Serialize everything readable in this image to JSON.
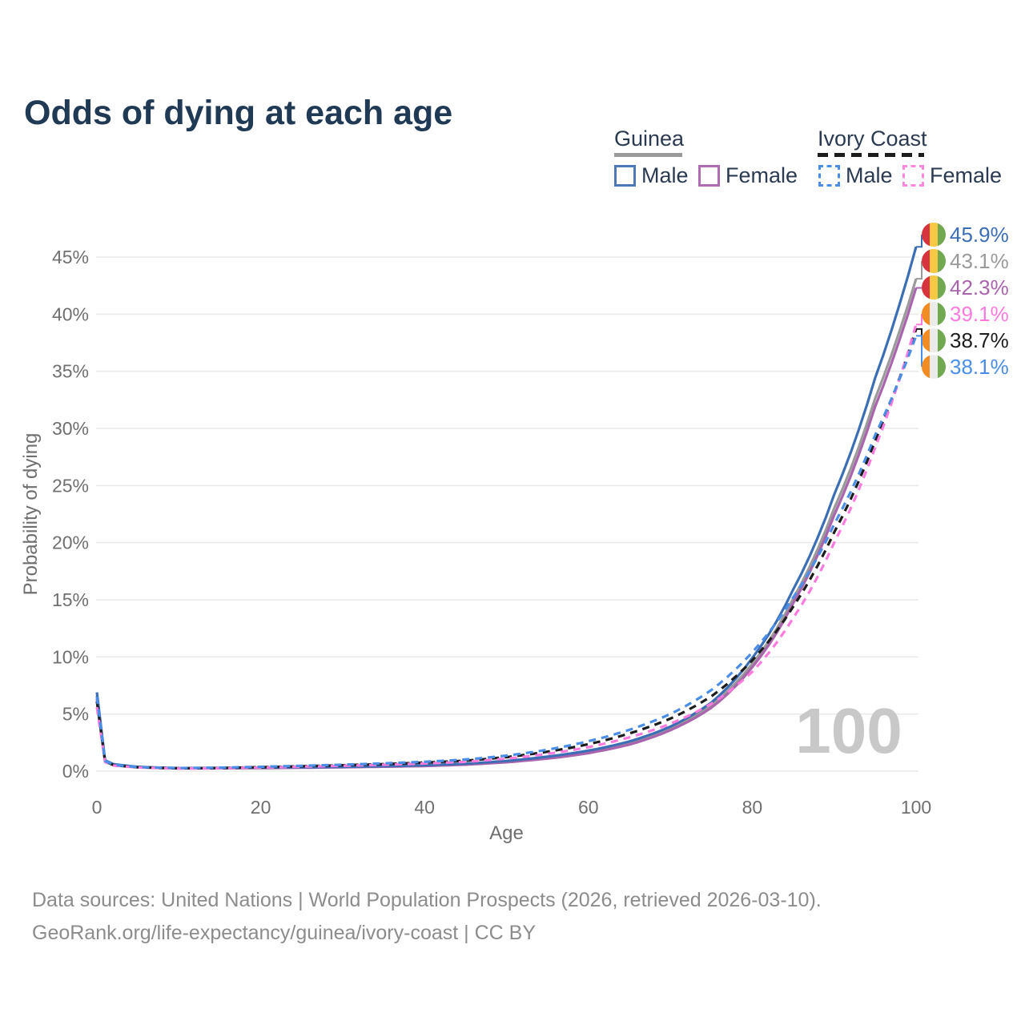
{
  "title": "Odds of dying at each age",
  "watermark": "100",
  "legend": {
    "groups": [
      {
        "name": "Guinea",
        "line_style": "solid",
        "line_color": "#9a9a9a",
        "items": [
          {
            "label": "Male",
            "color": "#4a7ab5"
          },
          {
            "label": "Female",
            "color": "#b06cb3"
          }
        ]
      },
      {
        "name": "Ivory Coast",
        "line_style": "dashed",
        "line_color": "#1c1c1c",
        "items": [
          {
            "label": "Male",
            "color": "#4b8ee8"
          },
          {
            "label": "Female",
            "color": "#ff87df"
          }
        ]
      }
    ]
  },
  "flags": {
    "guinea": [
      "#d6333f",
      "#f7c844",
      "#71a850"
    ],
    "ivory-coast": [
      "#f28b22",
      "#ebebeb",
      "#71a850"
    ]
  },
  "footer": {
    "line1": "Data sources: United Nations | World Population Prospects (2026, retrieved 2026-03-10).",
    "line2": "GeoRank.org/life-expectancy/guinea/ivory-coast | CC BY"
  },
  "chart_data": {
    "type": "line",
    "title": "Odds of dying at each age",
    "xlabel": "Age",
    "ylabel": "Probability of dying",
    "xlim": [
      0,
      100
    ],
    "ylim": [
      0,
      45
    ],
    "grid": "horizontal",
    "legend_position": "top-right",
    "x_ticks": [
      0,
      20,
      40,
      60,
      80,
      100
    ],
    "y_ticks": [
      "0%",
      "5%",
      "10%",
      "15%",
      "20%",
      "25%",
      "30%",
      "35%",
      "40%",
      "45%"
    ],
    "x": [
      0,
      1,
      2,
      5,
      10,
      15,
      20,
      25,
      30,
      35,
      40,
      45,
      50,
      55,
      60,
      65,
      70,
      75,
      80,
      85,
      90,
      95,
      100
    ],
    "series": [
      {
        "key": "guinea-total",
        "name": "Guinea",
        "color": "#9a9a9a",
        "dashed": false,
        "values": [
          6.6,
          0.9,
          0.58,
          0.36,
          0.25,
          0.26,
          0.29,
          0.32,
          0.36,
          0.41,
          0.48,
          0.61,
          0.83,
          1.17,
          1.68,
          2.45,
          3.72,
          5.75,
          9.4,
          15.1,
          23.0,
          32.6,
          43.1
        ]
      },
      {
        "key": "guinea-female",
        "name": "Guinea Female",
        "color": "#a964ad",
        "dashed": false,
        "values": [
          6.3,
          0.85,
          0.55,
          0.34,
          0.24,
          0.25,
          0.27,
          0.3,
          0.34,
          0.39,
          0.45,
          0.57,
          0.78,
          1.1,
          1.58,
          2.33,
          3.58,
          5.55,
          9.1,
          14.7,
          22.4,
          31.9,
          42.3
        ]
      },
      {
        "key": "guinea-male",
        "name": "Guinea Male",
        "color": "#3b6eb5",
        "dashed": false,
        "values": [
          6.9,
          0.95,
          0.62,
          0.38,
          0.26,
          0.27,
          0.31,
          0.34,
          0.38,
          0.44,
          0.52,
          0.66,
          0.9,
          1.27,
          1.8,
          2.6,
          3.9,
          6.0,
          9.9,
          15.9,
          24.2,
          34.4,
          45.9
        ]
      },
      {
        "key": "ivory-coast-total",
        "name": "Ivory Coast",
        "color": "#1c1c1c",
        "dashed": true,
        "values": [
          6.1,
          0.85,
          0.53,
          0.34,
          0.25,
          0.28,
          0.35,
          0.43,
          0.52,
          0.62,
          0.75,
          0.92,
          1.23,
          1.7,
          2.36,
          3.3,
          4.6,
          6.55,
          9.7,
          14.4,
          20.9,
          28.9,
          38.7
        ]
      },
      {
        "key": "ivory-coast-female",
        "name": "Ivory Coast Female",
        "color": "#ff7ade",
        "dashed": true,
        "values": [
          5.6,
          0.8,
          0.5,
          0.32,
          0.23,
          0.26,
          0.31,
          0.39,
          0.47,
          0.56,
          0.67,
          0.82,
          1.1,
          1.52,
          2.1,
          2.96,
          4.15,
          5.9,
          8.7,
          13.4,
          20.0,
          28.3,
          39.1
        ]
      },
      {
        "key": "ivory-coast-male",
        "name": "Ivory Coast Male",
        "color": "#4b8ee8",
        "dashed": true,
        "values": [
          6.5,
          0.9,
          0.56,
          0.36,
          0.27,
          0.31,
          0.38,
          0.47,
          0.57,
          0.68,
          0.82,
          1.02,
          1.36,
          1.88,
          2.62,
          3.62,
          5.0,
          7.1,
          10.4,
          15.2,
          21.6,
          29.4,
          38.1
        ]
      }
    ],
    "end_labels": [
      {
        "value": "45.9%",
        "series_key": "guinea-male",
        "flag": "guinea",
        "color": "#3b6eb5"
      },
      {
        "value": "43.1%",
        "series_key": "guinea-total",
        "flag": "guinea",
        "color": "#9a9a9a"
      },
      {
        "value": "42.3%",
        "series_key": "guinea-female",
        "flag": "guinea",
        "color": "#a964ad"
      },
      {
        "value": "39.1%",
        "series_key": "ivory-coast-female",
        "flag": "ivory-coast",
        "color": "#ff7ade"
      },
      {
        "value": "38.7%",
        "series_key": "ivory-coast-total",
        "flag": "ivory-coast",
        "color": "#1c1c1c"
      },
      {
        "value": "38.1%",
        "series_key": "ivory-coast-male",
        "flag": "ivory-coast",
        "color": "#4b8ee8"
      }
    ]
  }
}
